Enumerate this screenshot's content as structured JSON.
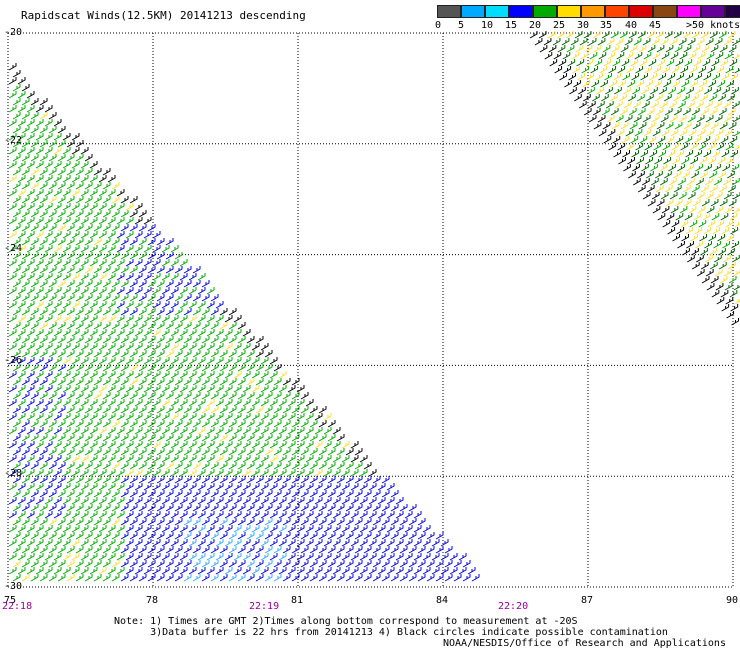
{
  "title": "Rapidscat Winds(12.5KM) 20141213 descending",
  "legend": {
    "colors": [
      "#555555",
      "#00aaff",
      "#00ddff",
      "#0000ff",
      "#00aa00",
      "#ffdd00",
      "#ff9900",
      "#ff4400",
      "#dd0000",
      "#8B4513",
      "#ff00ff",
      "#660099",
      "#220044"
    ],
    "labels": [
      "0",
      "5",
      "10",
      "15",
      "20",
      "25",
      "30",
      "35",
      "40",
      "45",
      ">50 knots"
    ]
  },
  "map": {
    "x_range": [
      75,
      90
    ],
    "y_range": [
      -20,
      -30
    ],
    "x_ticks": [
      "75",
      "78",
      "81",
      "84",
      "87",
      "90"
    ],
    "y_ticks": [
      "-20",
      "-22",
      "-24",
      "-26",
      "-28",
      "-30"
    ],
    "time_labels": [
      "22:18",
      "22:19",
      "22:20"
    ],
    "time_color": "#990099",
    "barb_colors": {
      "blue": "#0000dd",
      "lightblue": "#33aaff",
      "green": "#00aa00",
      "darkgreen": "#006600",
      "yellow": "#ffdd33",
      "black": "#000000"
    }
  },
  "notes": {
    "line1": "Note: 1) Times are GMT 2)Times along bottom correspond to measurement at -20S",
    "line2": "      3)Data buffer is 22 hrs from 20141213 4) Black circles indicate possible contamination"
  },
  "credit": "NOAA/NESDIS/Office of Research and Applications"
}
